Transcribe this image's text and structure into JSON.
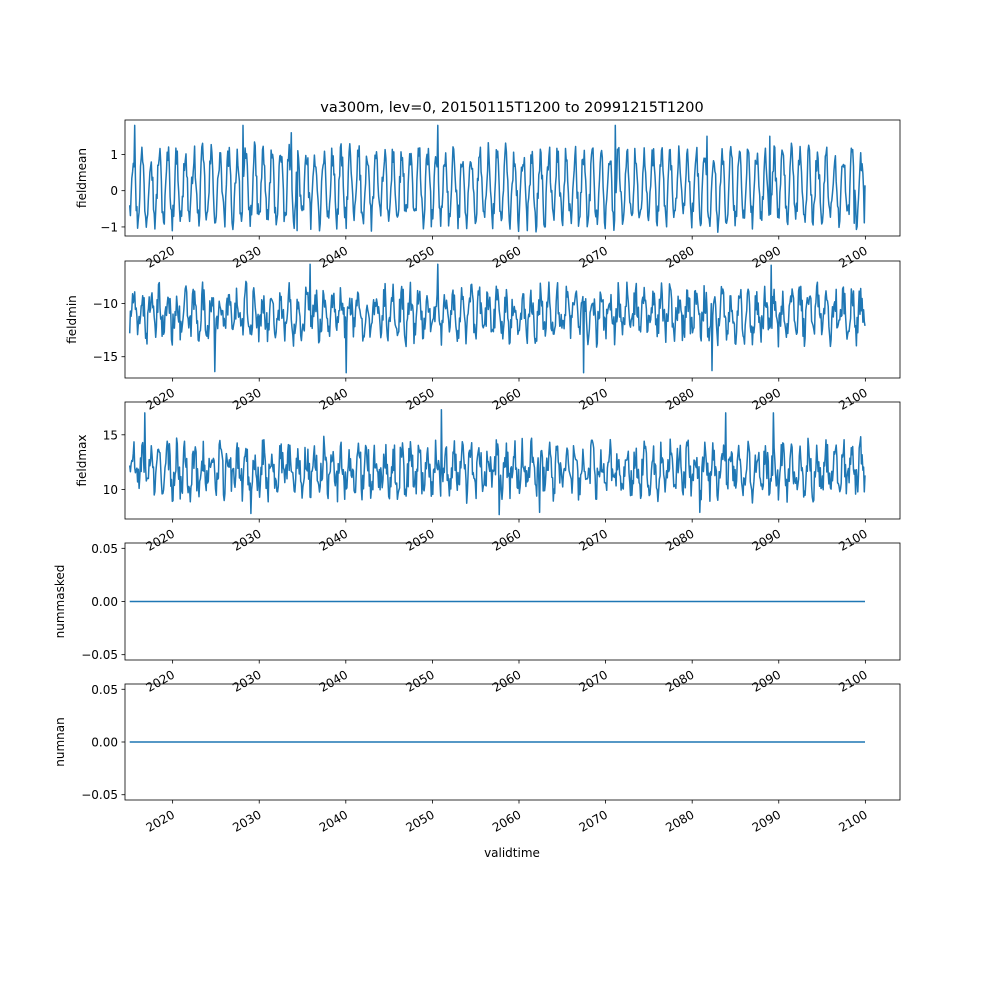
{
  "figure": {
    "title": "va300m, lev=0, 20150115T1200 to 20991215T1200",
    "xlabel": "validtime",
    "line_color": "#1f77b4"
  },
  "chart_data": [
    {
      "type": "line",
      "ylabel": "fieldmean",
      "xlim": [
        2014.5,
        2104.0
      ],
      "ylim": [
        -1.25,
        1.95
      ],
      "yticks": [
        -1,
        0,
        1
      ],
      "ytick_labels": [
        "−1",
        "0",
        "1"
      ],
      "xticks": [
        2020,
        2030,
        2040,
        2050,
        2060,
        2070,
        2080,
        2090,
        2100
      ],
      "xtick_labels": [
        "2020",
        "2030",
        "2040",
        "2050",
        "2060",
        "2070",
        "2080",
        "2090",
        "2100"
      ],
      "x_start": 2015.04,
      "x_end": 2099.96,
      "n_points": 1020,
      "seasonal_amplitude": 0.9,
      "noise_amplitude": 0.35,
      "baseline": 0.1,
      "peaks": [
        [
          2015.6,
          1.8
        ],
        [
          2028.1,
          1.8
        ],
        [
          2033.7,
          1.6
        ],
        [
          2050.6,
          1.8
        ],
        [
          2071.1,
          1.8
        ],
        [
          2081.7,
          1.5
        ],
        [
          2089.0,
          1.5
        ]
      ],
      "troughs": [
        [
          2034.4,
          -1.1
        ],
        [
          2061.0,
          -1.1
        ],
        [
          2084.0,
          -0.9
        ],
        [
          2098.7,
          -0.9
        ]
      ],
      "first_value": -0.4,
      "last_value": 0.15
    },
    {
      "type": "line",
      "ylabel": "fieldmin",
      "xlim": [
        2014.5,
        2104.0
      ],
      "ylim": [
        -17.0,
        -6.0
      ],
      "yticks": [
        -15,
        -10
      ],
      "ytick_labels": [
        "−15",
        "−10"
      ],
      "xticks": [
        2020,
        2030,
        2040,
        2050,
        2060,
        2070,
        2080,
        2090,
        2100
      ],
      "xtick_labels": [
        "2020",
        "2030",
        "2040",
        "2050",
        "2060",
        "2070",
        "2080",
        "2090",
        "2100"
      ],
      "x_start": 2015.04,
      "x_end": 2099.96,
      "n_points": 1020,
      "seasonal_amplitude": 1.6,
      "noise_amplitude": 1.5,
      "baseline": -11.0,
      "peaks": [
        [
          2035.9,
          -6.3
        ],
        [
          2050.6,
          -6.3
        ],
        [
          2089.1,
          -6.4
        ]
      ],
      "troughs": [
        [
          2024.9,
          -16.4
        ],
        [
          2040.0,
          -16.5
        ],
        [
          2067.5,
          -16.5
        ],
        [
          2082.3,
          -16.3
        ]
      ],
      "first_value": -12.8,
      "last_value": -12.1
    },
    {
      "type": "line",
      "ylabel": "fieldmax",
      "xlim": [
        2014.5,
        2104.0
      ],
      "ylim": [
        7.3,
        18.0
      ],
      "yticks": [
        10,
        15
      ],
      "ytick_labels": [
        "10",
        "15"
      ],
      "xticks": [
        2020,
        2030,
        2040,
        2050,
        2060,
        2070,
        2080,
        2090,
        2100
      ],
      "xtick_labels": [
        "2020",
        "2030",
        "2040",
        "2050",
        "2060",
        "2070",
        "2080",
        "2090",
        "2100"
      ],
      "x_start": 2015.04,
      "x_end": 2099.96,
      "n_points": 1020,
      "seasonal_amplitude": 1.5,
      "noise_amplitude": 1.6,
      "baseline": 11.8,
      "peaks": [
        [
          2016.8,
          17.0
        ],
        [
          2051.0,
          17.3
        ],
        [
          2083.9,
          17.0
        ],
        [
          2089.4,
          17.0
        ]
      ],
      "troughs": [
        [
          2029.0,
          7.8
        ],
        [
          2057.7,
          7.7
        ],
        [
          2062.4,
          7.9
        ],
        [
          2080.9,
          7.9
        ]
      ],
      "first_value": 12.2,
      "last_value": 11.3
    },
    {
      "type": "line",
      "ylabel": "nummasked",
      "xlim": [
        2014.5,
        2104.0
      ],
      "ylim": [
        -0.055,
        0.055
      ],
      "yticks": [
        -0.05,
        0,
        0.05
      ],
      "ytick_labels": [
        "−0.05",
        "0.00",
        "0.05"
      ],
      "xticks": [
        2020,
        2030,
        2040,
        2050,
        2060,
        2070,
        2080,
        2090,
        2100
      ],
      "xtick_labels": [
        "2020",
        "2030",
        "2040",
        "2050",
        "2060",
        "2070",
        "2080",
        "2090",
        "2100"
      ],
      "x_start": 2015.04,
      "x_end": 2099.96,
      "constant_value": 0
    },
    {
      "type": "line",
      "ylabel": "numnan",
      "xlim": [
        2014.5,
        2104.0
      ],
      "ylim": [
        -0.055,
        0.055
      ],
      "yticks": [
        -0.05,
        0,
        0.05
      ],
      "ytick_labels": [
        "−0.05",
        "0.00",
        "0.05"
      ],
      "xticks": [
        2020,
        2030,
        2040,
        2050,
        2060,
        2070,
        2080,
        2090,
        2100
      ],
      "xtick_labels": [
        "2020",
        "2030",
        "2040",
        "2050",
        "2060",
        "2070",
        "2080",
        "2090",
        "2100"
      ],
      "x_start": 2015.04,
      "x_end": 2099.96,
      "constant_value": 0
    }
  ]
}
